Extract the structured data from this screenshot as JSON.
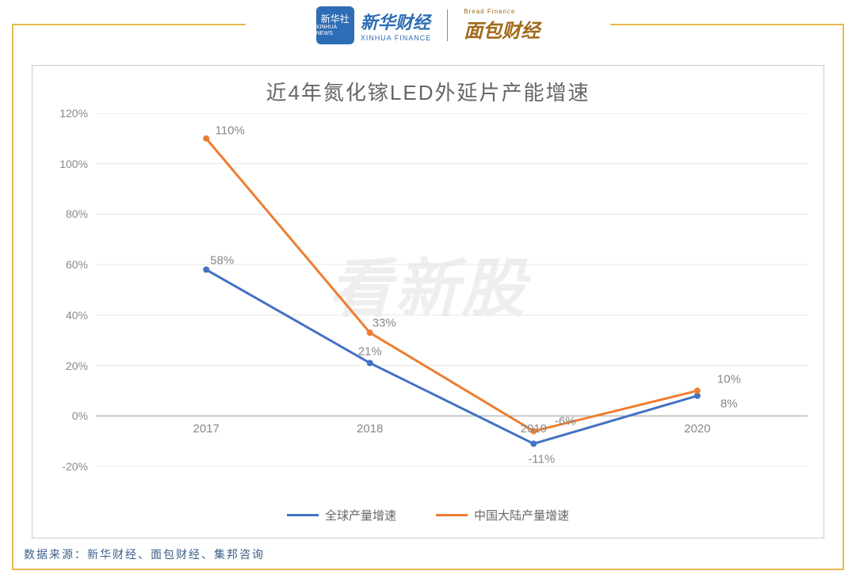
{
  "header": {
    "logo1_badge": "新华社",
    "logo1_badge_sub": "XINHUA NEWS",
    "logo1_cn": "新华财经",
    "logo1_en": "XINHUA FINANCE",
    "logo2_top": "Bread Finance",
    "logo2_cn": "面包财经"
  },
  "chart": {
    "type": "line",
    "title": "近4年氮化镓LED外延片产能增速",
    "watermark": "看新股",
    "x_categories": [
      "2017",
      "2018",
      "2019",
      "2020"
    ],
    "y_min": -20,
    "y_max": 120,
    "y_tick_step": 20,
    "y_tick_labels": [
      "-20%",
      "0%",
      "20%",
      "40%",
      "60%",
      "80%",
      "100%",
      "120%"
    ],
    "zero_line_color": "#bbbbbb",
    "grid_color": "#e6e6e6",
    "background_color": "#ffffff",
    "series": [
      {
        "name": "全球产量增速",
        "color": "#4472c4",
        "values": [
          58,
          21,
          -11,
          8
        ],
        "labels": [
          "58%",
          "21%",
          "-11%",
          "8%"
        ]
      },
      {
        "name": "中国大陆产量增速",
        "color": "#ed7d31",
        "values": [
          110,
          33,
          -6,
          10
        ],
        "labels": [
          "110%",
          "33%",
          "-6%",
          "10%"
        ]
      }
    ],
    "line_width": 3,
    "title_fontsize": 26,
    "axis_font_color": "#888888",
    "label_fontsize": 15
  },
  "source": "数据来源：新华财经、面包财经、集邦咨询",
  "frame_color": "#e8b850"
}
